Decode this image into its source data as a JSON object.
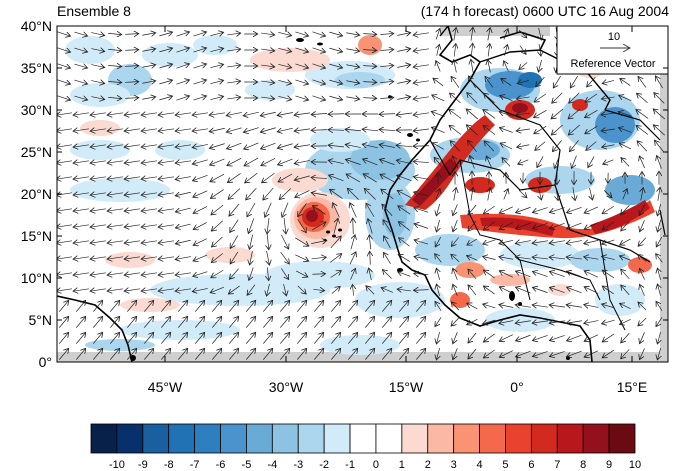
{
  "header": {
    "left_title": "Ensemble 8",
    "right_title": "(174 h forecast) 0600 UTC 16 Aug 2004"
  },
  "axes": {
    "lat_labels": [
      "40°N",
      "35°N",
      "30°N",
      "25°N",
      "20°N",
      "15°N",
      "10°N",
      "5°N",
      "0°"
    ],
    "lon_labels": [
      "45°W",
      "30°W",
      "15°W",
      "0°",
      "15°E"
    ]
  },
  "reference_vector": {
    "value": "10",
    "label": "Reference Vector"
  },
  "colorbar": {
    "labels": [
      "-10",
      "-9",
      "-8",
      "-7",
      "-6",
      "-5",
      "-4",
      "-3",
      "-2",
      "-1",
      "0",
      "1",
      "2",
      "3",
      "4",
      "5",
      "6",
      "7",
      "8",
      "9",
      "10"
    ],
    "colors": [
      "#08214a",
      "#08316b",
      "#1a5fa0",
      "#2171b5",
      "#2e7fc0",
      "#4a93cc",
      "#6aaad6",
      "#8cc3e3",
      "#abd6ee",
      "#d2ebf8",
      "#ffffff",
      "#ffffff",
      "#fbdad1",
      "#fbb9a5",
      "#f99373",
      "#f4694c",
      "#e9422f",
      "#d32a20",
      "#b8171c",
      "#93101c",
      "#6a0a12"
    ]
  }
}
